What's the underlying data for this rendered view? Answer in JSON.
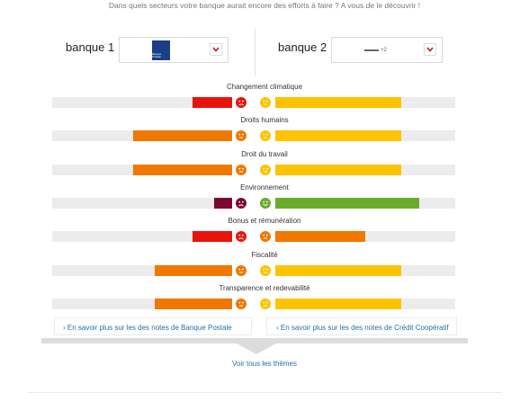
{
  "intro": "Dans quels secteurs votre banque aurait encore des efforts à faire ? A vous de le découvrir !",
  "bank1": {
    "label": "banque 1",
    "logo_text": "Banque Postale",
    "logo_color": "#1b3f86"
  },
  "bank2": {
    "label": "banque 2",
    "logo_text": "crédit coopératif"
  },
  "colors": {
    "red": "#e8140c",
    "orange": "#f07800",
    "yellow": "#fdc300",
    "green": "#6aac2b",
    "maroon": "#7a0a2d",
    "track": "#ececec"
  },
  "themes": [
    {
      "title": "Changement climatique",
      "bank1": {
        "score": 0.22,
        "rating": "red"
      },
      "bank2": {
        "score": 0.7,
        "rating": "yellow"
      }
    },
    {
      "title": "Droits humains",
      "bank1": {
        "score": 0.55,
        "rating": "orange"
      },
      "bank2": {
        "score": 0.7,
        "rating": "yellow"
      }
    },
    {
      "title": "Droit du travail",
      "bank1": {
        "score": 0.55,
        "rating": "orange"
      },
      "bank2": {
        "score": 0.7,
        "rating": "yellow"
      }
    },
    {
      "title": "Environnement",
      "bank1": {
        "score": 0.1,
        "rating": "maroon"
      },
      "bank2": {
        "score": 0.8,
        "rating": "green"
      }
    },
    {
      "title": "Bonus et rémunération",
      "bank1": {
        "score": 0.22,
        "rating": "red"
      },
      "bank2": {
        "score": 0.5,
        "rating": "orange"
      }
    },
    {
      "title": "Fiscalité",
      "bank1": {
        "score": 0.43,
        "rating": "orange"
      },
      "bank2": {
        "score": 0.7,
        "rating": "yellow"
      }
    },
    {
      "title": "Transparence et redevabilité",
      "bank1": {
        "score": 0.43,
        "rating": "orange"
      },
      "bank2": {
        "score": 0.7,
        "rating": "yellow"
      }
    }
  ],
  "links": {
    "bank1_more": "En savoir plus sur les des notes de Banque Postale",
    "bank2_more": "En savoir plus sur les des notes de Crédit Coopératif",
    "all_themes": "Voir tous les thèmes"
  }
}
